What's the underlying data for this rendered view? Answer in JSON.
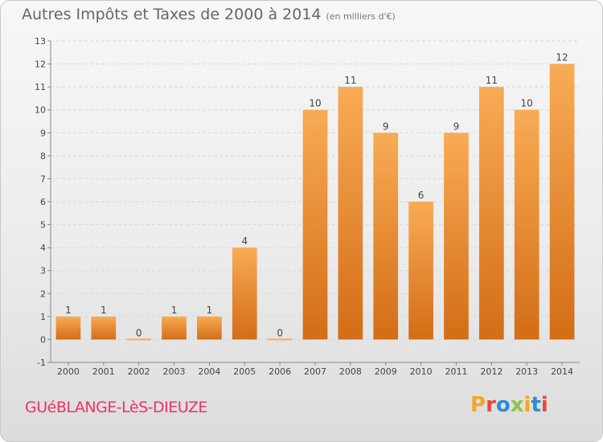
{
  "header": {
    "title": "Autres Impôts et Taxes de 2000 à 2014",
    "subtitle": "(en milliers d'€)"
  },
  "footer": {
    "commune": "GUéBLANGE-LèS-DIEUZE",
    "logo_text": "Proxiti"
  },
  "colors": {
    "bar_light": "#f9ab55",
    "bar_dark": "#d36d16",
    "commune_text": "#ee3366",
    "axis_text": "#444444",
    "grid": "#d8d8d8",
    "logo": [
      "#f5a623",
      "#e8473f",
      "#2e8bd8",
      "#8bc34a",
      "#f5a623",
      "#2e8bd8",
      "#e8473f"
    ]
  },
  "chart_data": {
    "type": "bar",
    "categories": [
      "2000",
      "2001",
      "2002",
      "2003",
      "2004",
      "2005",
      "2006",
      "2007",
      "2008",
      "2009",
      "2010",
      "2011",
      "2012",
      "2013",
      "2014"
    ],
    "values": [
      1,
      1,
      0,
      1,
      1,
      4,
      0,
      10,
      11,
      9,
      6,
      9,
      11,
      10,
      12
    ],
    "data_labels": [
      "1",
      "1",
      "0",
      "1",
      "1",
      "4",
      "0",
      "10",
      "11",
      "9",
      "6",
      "9",
      "11",
      "10",
      "12"
    ],
    "y_ticks": [
      "-1",
      "0",
      "1",
      "2",
      "3",
      "4",
      "5",
      "6",
      "7",
      "8",
      "9",
      "10",
      "11",
      "12",
      "13"
    ],
    "ylim": [
      -1,
      13
    ],
    "grid": "horizontal",
    "xlabel": "",
    "ylabel": ""
  }
}
